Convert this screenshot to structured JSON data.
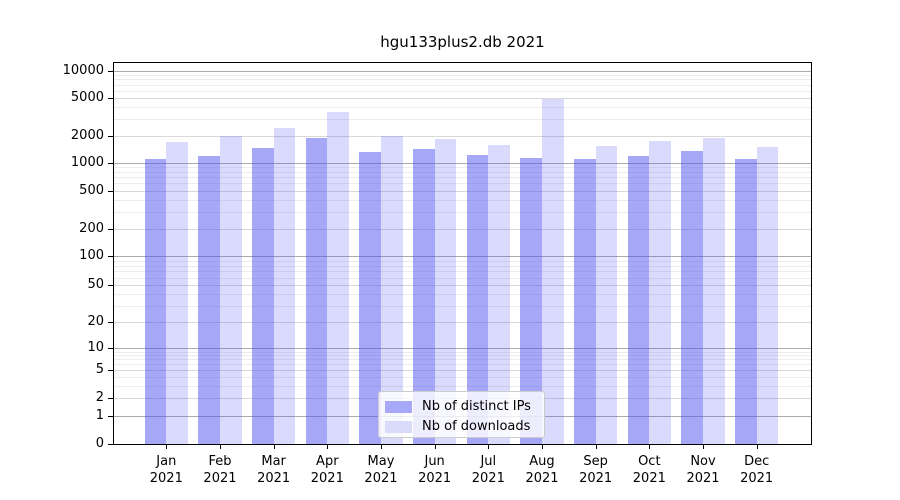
{
  "figure": {
    "title": "hgu133plus2.db 2021",
    "background": "#ffffff"
  },
  "legend": {
    "position": "lower center",
    "items": [
      {
        "label": "Nb of distinct IPs",
        "swatch_color": "#a8a8f8"
      },
      {
        "label": "Nb of downloads",
        "swatch_color": "#dadafb"
      }
    ]
  },
  "axes": {
    "y_ticks": [
      0,
      1,
      2,
      5,
      10,
      20,
      50,
      100,
      200,
      500,
      1000,
      2000,
      5000,
      10000
    ],
    "x_month_labels": [
      "Jan",
      "Feb",
      "Mar",
      "Apr",
      "May",
      "Jun",
      "Jul",
      "Aug",
      "Sep",
      "Oct",
      "Nov",
      "Dec"
    ],
    "x_year_label": "2021"
  },
  "colors": {
    "bar_base_rgb": "80,80,240",
    "ips_alpha": 0.5,
    "downloads_alpha": 0.21,
    "grid_major": "#ababab",
    "grid_sub": "#d8d8d8",
    "grid_minor": "#ececec",
    "spine": "#000000",
    "text": "#000000"
  },
  "chart_data": {
    "type": "bar",
    "title": "hgu133plus2.db 2021",
    "xlabel": "",
    "ylabel": "",
    "yscale": "log (symlog with 0 baseline)",
    "ylim": [
      0,
      12000
    ],
    "yticks": [
      0,
      1,
      2,
      5,
      10,
      20,
      50,
      100,
      200,
      500,
      1000,
      2000,
      5000,
      10000
    ],
    "grid": "horizontal major + minor",
    "legend_position": "lower center",
    "categories": [
      "Jan 2021",
      "Feb 2021",
      "Mar 2021",
      "Apr 2021",
      "May 2021",
      "Jun 2021",
      "Jul 2021",
      "Aug 2021",
      "Sep 2021",
      "Oct 2021",
      "Nov 2021",
      "Dec 2021"
    ],
    "series": [
      {
        "name": "Nb of distinct IPs",
        "values": [
          1090,
          1190,
          1470,
          1860,
          1320,
          1430,
          1210,
          1120,
          1100,
          1200,
          1350,
          1090
        ]
      },
      {
        "name": "Nb of downloads",
        "values": [
          1700,
          2000,
          2390,
          3580,
          1980,
          1830,
          1580,
          4850,
          1520,
          1760,
          1900,
          1480
        ]
      }
    ]
  }
}
